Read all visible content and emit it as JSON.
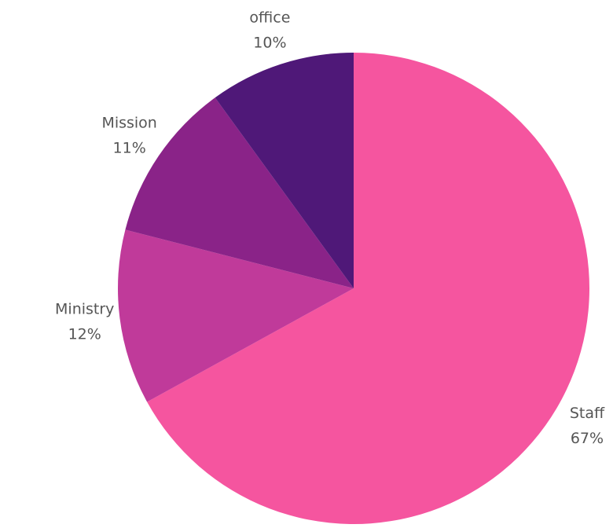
{
  "chart_data": {
    "type": "pie",
    "categories": [
      "Staff",
      "Ministry",
      "Mission",
      "office"
    ],
    "values": [
      67,
      12,
      11,
      10
    ],
    "value_labels": [
      "67%",
      "12%",
      "11%",
      "10%"
    ],
    "colors": [
      "#f5559f",
      "#c03a9a",
      "#8a2388",
      "#4f1878"
    ]
  }
}
